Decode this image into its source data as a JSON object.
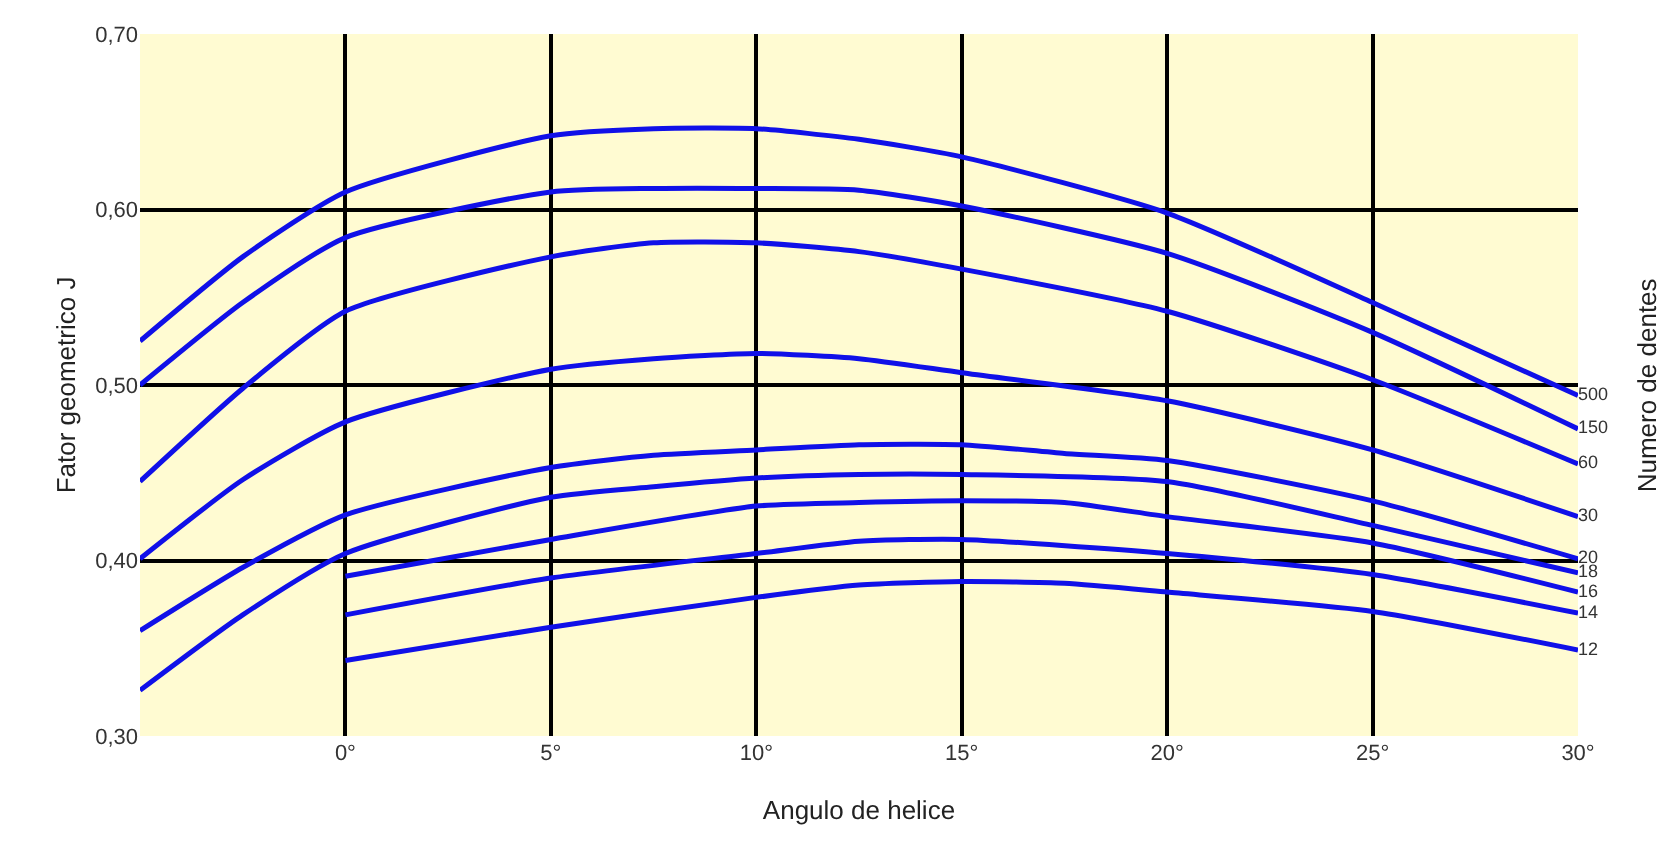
{
  "chart_data": {
    "type": "line",
    "xlabel": "Angulo de helice",
    "ylabel": "Fator geometrico J",
    "legend_title": "Numero de dentes",
    "xlim": [
      -5,
      30
    ],
    "xticks": [
      {
        "value": 0,
        "label": "0°"
      },
      {
        "value": 5,
        "label": "5°"
      },
      {
        "value": 10,
        "label": "10°"
      },
      {
        "value": 15,
        "label": "15°"
      },
      {
        "value": 20,
        "label": "20°"
      },
      {
        "value": 25,
        "label": "25°"
      },
      {
        "value": 30,
        "label": "30°"
      }
    ],
    "ylim": [
      0.3,
      0.7
    ],
    "yticks": [
      {
        "value": 0.3,
        "label": "0,30"
      },
      {
        "value": 0.4,
        "label": "0,40"
      },
      {
        "value": 0.5,
        "label": "0,50"
      },
      {
        "value": 0.6,
        "label": "0,60"
      },
      {
        "value": 0.7,
        "label": "0,70"
      }
    ],
    "grid": true,
    "legend": false,
    "marker": "none",
    "line_style": "solid",
    "series": [
      {
        "name": "500",
        "color": "#1010e8",
        "x": [
          -5,
          -2.5,
          0,
          5,
          7.5,
          10,
          12.5,
          15,
          20,
          25,
          30
        ],
        "values": [
          0.525,
          0.573,
          0.61,
          0.642,
          0.646,
          0.646,
          0.64,
          0.63,
          0.598,
          0.547,
          0.494
        ]
      },
      {
        "name": "150",
        "color": "#1010e8",
        "x": [
          -5,
          -2.5,
          0,
          5,
          7.5,
          10,
          12.5,
          15,
          20,
          25,
          30
        ],
        "values": [
          0.5,
          0.547,
          0.584,
          0.61,
          0.612,
          0.612,
          0.611,
          0.602,
          0.575,
          0.53,
          0.475
        ]
      },
      {
        "name": "60",
        "color": "#1010e8",
        "x": [
          -5,
          -2.5,
          0,
          5,
          7.5,
          10,
          12.5,
          15,
          20,
          25,
          30
        ],
        "values": [
          0.445,
          0.498,
          0.542,
          0.573,
          0.581,
          0.581,
          0.576,
          0.566,
          0.542,
          0.503,
          0.455
        ]
      },
      {
        "name": "30",
        "color": "#1010e8",
        "x": [
          -5,
          -2.5,
          0,
          5,
          7.5,
          10,
          12.5,
          15,
          20,
          25,
          30
        ],
        "values": [
          0.401,
          0.446,
          0.479,
          0.509,
          0.515,
          0.518,
          0.515,
          0.507,
          0.491,
          0.463,
          0.425
        ]
      },
      {
        "name": "20",
        "color": "#1010e8",
        "x": [
          -5,
          -2.5,
          0,
          5,
          7.5,
          10,
          12.5,
          15,
          17.5,
          20,
          25,
          30
        ],
        "values": [
          0.36,
          0.396,
          0.426,
          0.453,
          0.46,
          0.463,
          0.466,
          0.466,
          0.461,
          0.457,
          0.434,
          0.401
        ]
      },
      {
        "name": "18",
        "color": "#1010e8",
        "x": [
          -5,
          -2.5,
          0,
          5,
          7.5,
          10,
          12.5,
          15,
          20,
          25,
          30
        ],
        "values": [
          0.326,
          0.369,
          0.404,
          0.436,
          0.442,
          0.447,
          0.449,
          0.449,
          0.445,
          0.42,
          0.393
        ]
      },
      {
        "name": "16",
        "color": "#1010e8",
        "x": [
          0,
          5,
          10,
          12.5,
          15,
          17.5,
          20,
          25,
          30
        ],
        "values": [
          0.391,
          0.412,
          0.431,
          0.433,
          0.434,
          0.433,
          0.425,
          0.41,
          0.382
        ]
      },
      {
        "name": "14",
        "color": "#1010e8",
        "x": [
          0,
          5,
          10,
          12.5,
          15,
          20,
          25,
          30
        ],
        "values": [
          0.369,
          0.39,
          0.404,
          0.411,
          0.412,
          0.404,
          0.392,
          0.37
        ]
      },
      {
        "name": "12",
        "color": "#1010e8",
        "x": [
          0,
          5,
          10,
          12.5,
          15,
          17.5,
          20,
          25,
          30
        ],
        "values": [
          0.343,
          0.362,
          0.379,
          0.386,
          0.388,
          0.387,
          0.382,
          0.371,
          0.349
        ]
      }
    ]
  }
}
